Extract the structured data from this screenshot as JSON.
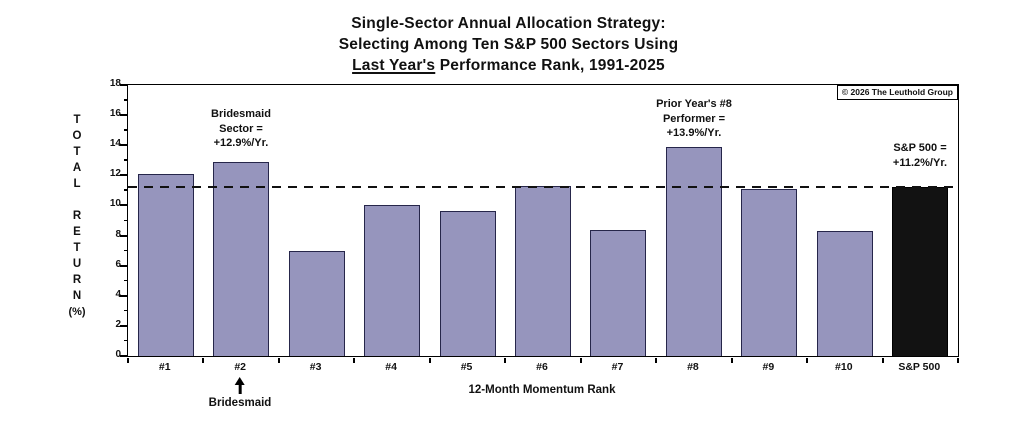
{
  "title": {
    "line1": "Single-Sector Annual Allocation Strategy:",
    "line2": "Selecting Among Ten S&P 500 Sectors Using",
    "line3_underlined": "Last Year's",
    "line3_rest": " Performance Rank, 1991-2025"
  },
  "copyright": "© 2026 The Leuthold Group",
  "annotations": {
    "bridesmaid_sector": "Bridesmaid\nSector =\n+12.9%/Yr.",
    "prior_year": "Prior Year's #8\nPerformer =\n+13.9%/Yr.",
    "sp500": "S&P 500 =\n+11.2%/Yr.",
    "bridesmaid_arrow_label": "Bridesmaid"
  },
  "axis": {
    "y_title_stack": "T\nO\nT\nA\nL\n\nR\nE\nT\nU\nR\nN",
    "y_unit": "(%)"
  },
  "chart_data": {
    "type": "bar",
    "title": "Single-Sector Annual Allocation Strategy: Selecting Among Ten S&P 500 Sectors Using Last Year's Performance Rank, 1991-2025",
    "categories": [
      "#1",
      "#2",
      "#3",
      "#4",
      "#5",
      "#6",
      "#7",
      "#8",
      "#9",
      "#10",
      "S&P 500"
    ],
    "values": [
      12.1,
      12.9,
      7.0,
      10.0,
      9.6,
      11.3,
      8.4,
      13.9,
      11.1,
      8.3,
      11.2
    ],
    "xlabel": "12-Month Momentum Rank",
    "ylabel": "TOTAL RETURN (%)",
    "ylim": [
      0,
      18
    ],
    "ytick_step": 2,
    "grid": false,
    "legend": null,
    "reference_line": {
      "value": 11.2,
      "label": "S&P 500 = +11.2%/Yr.",
      "style": "dashed"
    },
    "colors": {
      "bar_fill": "#9695bd",
      "bar_border": "#26264a",
      "sp500_bar_fill": "#121212",
      "reference_line": "#111111"
    }
  }
}
